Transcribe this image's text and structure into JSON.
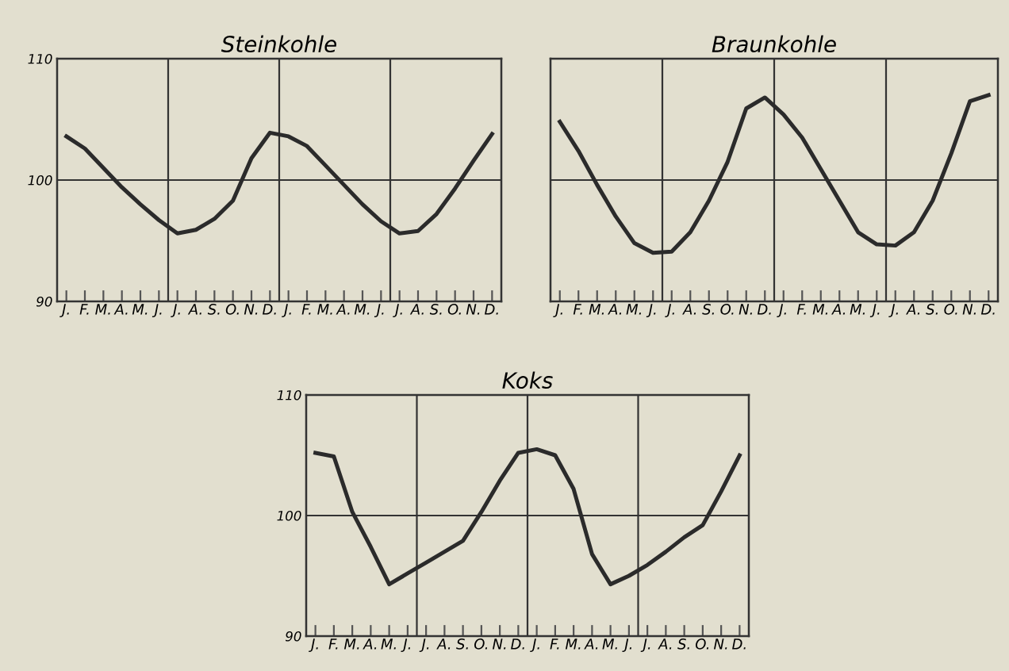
{
  "chart_data": [
    {
      "type": "line",
      "title": "Steinkohle",
      "categories": [
        "J.",
        "F.",
        "M.",
        "A.",
        "M.",
        "J.",
        "J.",
        "A.",
        "S.",
        "O.",
        "N.",
        "D.",
        "J.",
        "F.",
        "M.",
        "A.",
        "M.",
        "J.",
        "J.",
        "A.",
        "S.",
        "O.",
        "N.",
        "D."
      ],
      "series": [
        {
          "color": "#2b2b2b",
          "values": [
            103.6,
            102.6,
            101.0,
            99.4,
            98.0,
            96.7,
            95.6,
            95.9,
            96.8,
            98.3,
            101.8,
            103.9,
            103.6,
            102.8,
            101.2,
            99.6,
            98.0,
            96.6,
            95.6,
            95.8,
            97.2,
            99.3,
            101.6,
            103.8
          ]
        }
      ],
      "ylim": [
        90,
        110
      ],
      "yticks": [
        90,
        100,
        110
      ],
      "grid": true,
      "legend": false
    },
    {
      "type": "line",
      "title": "Braunkohle",
      "categories": [
        "J.",
        "F.",
        "M.",
        "A.",
        "M.",
        "J.",
        "J.",
        "A.",
        "S.",
        "O.",
        "N.",
        "D.",
        "J.",
        "F.",
        "M.",
        "A.",
        "M.",
        "J.",
        "J.",
        "A.",
        "S.",
        "O.",
        "N.",
        "D."
      ],
      "series": [
        {
          "color": "#2b2b2b",
          "values": [
            104.8,
            102.4,
            99.6,
            97.0,
            94.8,
            94.0,
            94.1,
            95.7,
            98.3,
            101.5,
            105.9,
            106.8,
            105.4,
            103.5,
            100.9,
            98.3,
            95.7,
            94.7,
            94.6,
            95.7,
            98.3,
            102.2,
            106.5,
            107.0
          ]
        }
      ],
      "ylim": [
        90,
        110
      ],
      "yticks": [
        90,
        100,
        110
      ],
      "grid": true,
      "legend": false,
      "tick_labels": "x"
    },
    {
      "type": "line",
      "title": "Koks",
      "categories": [
        "J.",
        "F.",
        "M.",
        "A.",
        "M.",
        "J.",
        "J.",
        "A.",
        "S.",
        "O.",
        "N.",
        "D.",
        "J.",
        "F.",
        "M.",
        "A.",
        "M.",
        "J.",
        "J.",
        "A.",
        "S.",
        "O.",
        "N.",
        "D."
      ],
      "series": [
        {
          "color": "#2b2b2b",
          "values": [
            105.2,
            104.9,
            100.3,
            97.4,
            94.3,
            95.2,
            96.1,
            97.0,
            97.9,
            100.3,
            102.9,
            105.2,
            105.5,
            105.0,
            102.2,
            96.8,
            94.3,
            95.0,
            95.9,
            97.0,
            98.2,
            99.2,
            102.0,
            105.0
          ]
        }
      ],
      "ylim": [
        90,
        110
      ],
      "yticks": [
        90,
        100,
        110
      ],
      "grid": true,
      "legend": false
    }
  ]
}
